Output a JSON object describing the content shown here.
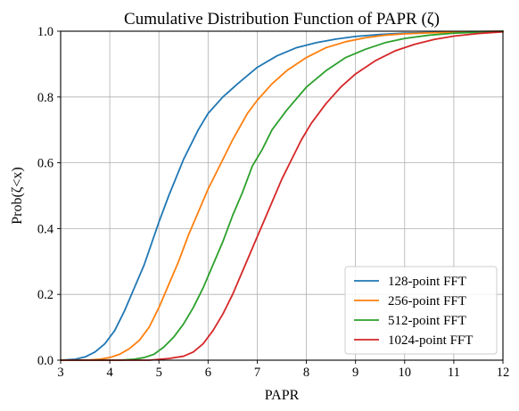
{
  "chart_data": {
    "type": "line",
    "title": "Cumulative Distribution Function of PAPR (ζ)",
    "xlabel": "PAPR",
    "ylabel": "Prob(ζ<x)",
    "xlim": [
      3,
      12
    ],
    "ylim": [
      0,
      1
    ],
    "xticks": [
      "3",
      "4",
      "5",
      "6",
      "7",
      "8",
      "9",
      "10",
      "11",
      "12"
    ],
    "yticks": [
      "0.0",
      "0.2",
      "0.4",
      "0.6",
      "0.8",
      "1.0"
    ],
    "grid": true,
    "legend_position": "bottom-right",
    "series": [
      {
        "name": "128-point FFT",
        "color": "#1f77b4",
        "x": [
          3.0,
          3.3,
          3.5,
          3.7,
          3.9,
          4.1,
          4.3,
          4.5,
          4.7,
          5.0,
          5.2,
          5.5,
          5.8,
          6.0,
          6.3,
          6.6,
          7.0,
          7.4,
          7.8,
          8.2,
          8.6,
          9.0,
          9.5,
          10.0,
          10.5,
          11.0,
          11.5,
          12.0
        ],
        "y": [
          0.0,
          0.003,
          0.01,
          0.025,
          0.05,
          0.09,
          0.15,
          0.22,
          0.29,
          0.42,
          0.5,
          0.61,
          0.7,
          0.75,
          0.8,
          0.84,
          0.89,
          0.925,
          0.95,
          0.965,
          0.976,
          0.984,
          0.99,
          0.994,
          0.996,
          0.998,
          0.999,
          1.0
        ]
      },
      {
        "name": "256-point FFT",
        "color": "#ff7f0e",
        "x": [
          3.0,
          3.6,
          3.8,
          4.0,
          4.2,
          4.4,
          4.6,
          4.8,
          5.0,
          5.2,
          5.4,
          5.6,
          5.8,
          6.0,
          6.2,
          6.5,
          6.8,
          7.0,
          7.3,
          7.6,
          8.0,
          8.4,
          8.8,
          9.2,
          9.6,
          10.0,
          10.5,
          11.0,
          11.5,
          12.0
        ],
        "y": [
          0.0,
          0.001,
          0.003,
          0.008,
          0.018,
          0.035,
          0.06,
          0.1,
          0.16,
          0.23,
          0.3,
          0.38,
          0.45,
          0.52,
          0.58,
          0.67,
          0.75,
          0.79,
          0.84,
          0.88,
          0.92,
          0.95,
          0.968,
          0.98,
          0.988,
          0.992,
          0.995,
          0.997,
          0.999,
          1.0
        ]
      },
      {
        "name": "512-point FFT",
        "color": "#2ca02c",
        "x": [
          3.0,
          4.2,
          4.5,
          4.7,
          4.9,
          5.1,
          5.3,
          5.5,
          5.7,
          5.9,
          6.1,
          6.3,
          6.5,
          6.7,
          6.9,
          7.1,
          7.3,
          7.6,
          8.0,
          8.4,
          8.8,
          9.2,
          9.6,
          10.0,
          10.5,
          11.0,
          11.5,
          12.0
        ],
        "y": [
          0.0,
          0.0,
          0.003,
          0.008,
          0.018,
          0.04,
          0.07,
          0.11,
          0.16,
          0.22,
          0.29,
          0.36,
          0.44,
          0.51,
          0.59,
          0.64,
          0.7,
          0.76,
          0.83,
          0.88,
          0.92,
          0.945,
          0.965,
          0.978,
          0.988,
          0.994,
          0.997,
          1.0
        ]
      },
      {
        "name": "1024-point FFT",
        "color": "#d62728",
        "x": [
          3.0,
          4.8,
          5.2,
          5.5,
          5.7,
          5.9,
          6.1,
          6.3,
          6.5,
          6.7,
          6.9,
          7.1,
          7.3,
          7.5,
          7.7,
          7.9,
          8.1,
          8.4,
          8.7,
          9.0,
          9.4,
          9.8,
          10.2,
          10.6,
          11.0,
          11.5,
          12.0
        ],
        "y": [
          0.0,
          0.0,
          0.005,
          0.012,
          0.025,
          0.05,
          0.09,
          0.14,
          0.2,
          0.27,
          0.34,
          0.41,
          0.48,
          0.55,
          0.61,
          0.67,
          0.72,
          0.78,
          0.83,
          0.87,
          0.91,
          0.94,
          0.96,
          0.975,
          0.985,
          0.993,
          0.998
        ]
      }
    ]
  }
}
